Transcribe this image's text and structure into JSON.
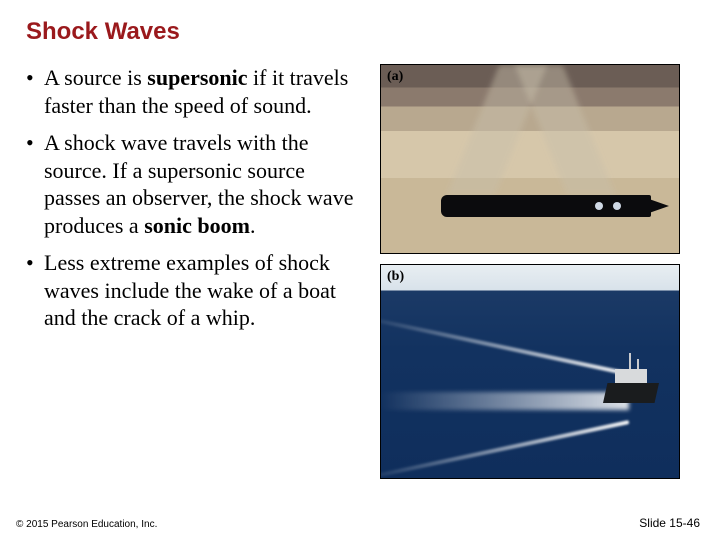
{
  "title": "Shock Waves",
  "bullets": [
    {
      "pre": "A source is ",
      "term": "supersonic",
      "post": " if it travels faster than the speed of sound."
    },
    {
      "pre": "A shock wave travels with the source. If a supersonic source passes an observer, the shock wave produces a ",
      "term": "sonic boom",
      "post": "."
    },
    {
      "pre": "Less extreme examples of shock waves include the wake of a boat and the crack of a whip.",
      "term": "",
      "post": ""
    }
  ],
  "figure_a_label": "(a)",
  "figure_b_label": "(b)",
  "copyright": "© 2015 Pearson Education, Inc.",
  "slide_number": "Slide 15-46",
  "colors": {
    "title": "#9a191c",
    "background": "#ffffff"
  }
}
